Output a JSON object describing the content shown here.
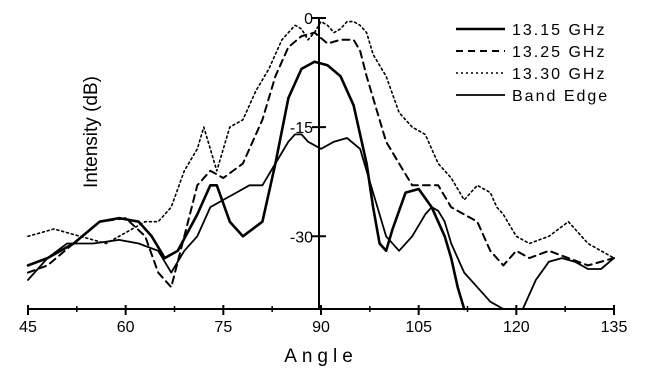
{
  "chart_data": {
    "type": "line",
    "title": "",
    "xlabel": "Angle",
    "ylabel": "Intensity (dB)",
    "xlim": [
      45,
      135
    ],
    "ylim": [
      -40,
      0
    ],
    "xticks": [
      45,
      60,
      75,
      90,
      105,
      120,
      135
    ],
    "yticks": [
      0,
      -15,
      -30
    ],
    "legend_position": "top-right",
    "series": [
      {
        "name": "13.15 GHz",
        "style": "solid-thick",
        "x": [
          45,
          48,
          52,
          56,
          59,
          62,
          64,
          66,
          68,
          71,
          73,
          74,
          76,
          78,
          81,
          83,
          85,
          87,
          89,
          91,
          93,
          95,
          97,
          98,
          99,
          100,
          101,
          103,
          105,
          107,
          109,
          110,
          111,
          112
        ],
        "y": [
          -34,
          -33,
          -31,
          -28,
          -27.5,
          -28,
          -30,
          -33,
          -32,
          -27,
          -23,
          -23,
          -28,
          -30,
          -28,
          -20,
          -11,
          -7,
          -6,
          -6.5,
          -8,
          -12,
          -20,
          -26,
          -31,
          -32,
          -29,
          -24,
          -23.5,
          -26,
          -30,
          -33,
          -37,
          -40
        ]
      },
      {
        "name": "13.25 GHz",
        "style": "dashed",
        "x": [
          45,
          48,
          52,
          56,
          60,
          63,
          65,
          67,
          69,
          71,
          73,
          75,
          78,
          81,
          83,
          85,
          87,
          89,
          91,
          93,
          95,
          96,
          97,
          98,
          100,
          102,
          104,
          106,
          108,
          110,
          112,
          114,
          116,
          118,
          120,
          122,
          125,
          128,
          131,
          135
        ],
        "y": [
          -35,
          -34,
          -31,
          -28,
          -27.5,
          -30,
          -35,
          -37,
          -30,
          -23,
          -21,
          -22,
          -20,
          -14,
          -8,
          -4,
          -2.5,
          -2,
          -3.5,
          -3,
          -3,
          -4.5,
          -8,
          -11,
          -17,
          -20,
          -23,
          -23,
          -23,
          -26,
          -27,
          -28,
          -32,
          -34,
          -32,
          -33,
          -32,
          -33,
          -34,
          -33
        ]
      },
      {
        "name": "13.30 GHz",
        "style": "dotted",
        "x": [
          45,
          49,
          53,
          57,
          61,
          63,
          65,
          67,
          69,
          71,
          72,
          73,
          74,
          76,
          78,
          80,
          82,
          84,
          86,
          87,
          88,
          89,
          90,
          91,
          92,
          93,
          94,
          95,
          96,
          97,
          98,
          100,
          102,
          104,
          106,
          108,
          110,
          112,
          114,
          116,
          117,
          118,
          120,
          122,
          125,
          128,
          131,
          135
        ],
        "y": [
          -30,
          -29,
          -30,
          -31,
          -29,
          -28,
          -28,
          -26,
          -21,
          -18,
          -15,
          -18,
          -21,
          -15,
          -14,
          -10,
          -7,
          -3,
          -1,
          -1.5,
          -3,
          -2,
          -0.5,
          -1,
          -2,
          -1.5,
          -0.5,
          -0.5,
          -1,
          -2,
          -5,
          -8,
          -13,
          -15,
          -16,
          -20,
          -22,
          -25,
          -23,
          -24,
          -26,
          -27,
          -30,
          -31,
          -30,
          -28,
          -31,
          -33
        ]
      },
      {
        "name": "Band Edge",
        "style": "solid-thin",
        "x": [
          45,
          48,
          51,
          55,
          59,
          62,
          65,
          67,
          69,
          71,
          73,
          75,
          77,
          79,
          81,
          83,
          85,
          86,
          87,
          88,
          90,
          92,
          94,
          96,
          98,
          100,
          102,
          104,
          106,
          107,
          108,
          109,
          110,
          112,
          114,
          116,
          118,
          119
        ],
        "y": [
          -36,
          -33,
          -31,
          -31,
          -30.5,
          -31,
          -32,
          -35,
          -32,
          -30,
          -26,
          -25,
          -24,
          -23,
          -23,
          -20,
          -17,
          -16,
          -16,
          -17,
          -18,
          -17,
          -16.5,
          -18,
          -24,
          -30,
          -32,
          -30,
          -27,
          -26,
          -26.5,
          -28,
          -31,
          -35,
          -37,
          -39,
          -40,
          -40
        ]
      },
      {
        "name": "",
        "style": "solid-thin",
        "x": [
          121,
          123,
          125,
          127,
          129,
          131,
          133,
          135
        ],
        "y": [
          -40,
          -36,
          -33.5,
          -33,
          -33.5,
          -34.5,
          -34.5,
          -33
        ]
      }
    ]
  }
}
